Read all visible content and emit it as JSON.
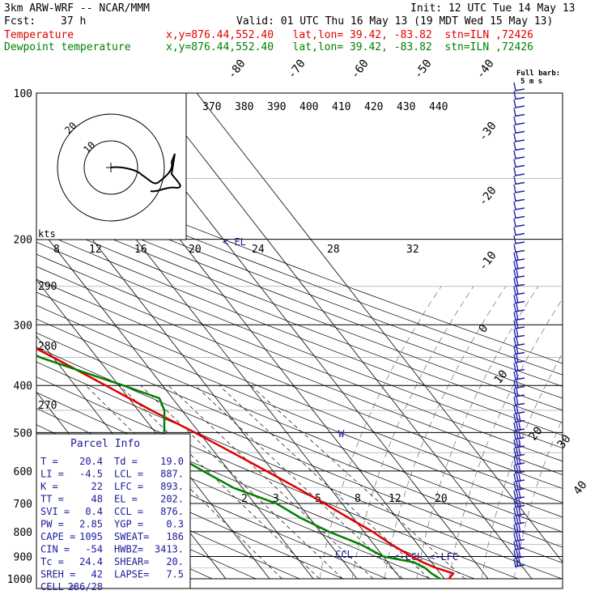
{
  "header": {
    "model": "3km ARW-WRF -- NCAR/MMM",
    "init": "Init: 12 UTC Tue 14 May 13",
    "fcst_label": "Fcst:",
    "fcst_value": "37 h",
    "valid": "Valid: 01 UTC Thu 16 May 13 (19 MDT Wed 15 May 13)",
    "temperature": {
      "name": "Temperature",
      "info": "x,y=876.44,552.40   lat,lon= 39.42, -83.82  stn=ILN ,72426"
    },
    "dewpoint": {
      "name": "Dewpoint temperature",
      "info": "x,y=876.44,552.40   lat,lon= 39.42, -83.82  stn=ILN ,72426"
    }
  },
  "colors": {
    "temperature": "#e00000",
    "dewpoint": "#008000",
    "parcel_text": "#1a1a9a",
    "barbs": "#2222aa"
  },
  "wind_barb_legend": {
    "line1": "Full barb:",
    "line2": "5 m s"
  },
  "parcel_info": {
    "title": "Parcel Info",
    "rows": [
      [
        "T  =",
        "20.4",
        "Td =",
        "19.0"
      ],
      [
        "LI =",
        "-4.5",
        "LCL =",
        "887."
      ],
      [
        "K  =",
        "22",
        "LFC =",
        "893."
      ],
      [
        "TT =",
        "48",
        "EL  =",
        "202."
      ],
      [
        "SVI =",
        "0.4",
        "CCL =",
        "876."
      ],
      [
        "PW =",
        "2.85",
        "YGP =",
        "0.3"
      ],
      [
        "CAPE =",
        "1095",
        "SWEAT=",
        "186"
      ],
      [
        "CIN =",
        "-54",
        "HWBZ=",
        "3413."
      ],
      [
        "Tc =",
        "24.4",
        "SHEAR=",
        "20."
      ],
      [
        "SREH =",
        "42",
        "LAPSE=",
        "7.5"
      ],
      [
        "CELL =",
        "286/28",
        "",
        ""
      ]
    ]
  },
  "hodograph": {
    "speed_label": "kts",
    "ring_labels": [
      "20",
      "10"
    ],
    "speed_ticks": [
      "8",
      "12",
      "16",
      "20",
      "24",
      "28",
      "32"
    ]
  },
  "level_markers": {
    "el": "<-EL",
    "lcl": "<-LCL",
    "lfc": "<-LFC",
    "ccl": "CCL"
  },
  "chart_data": {
    "type": "line",
    "title": "",
    "ylabel": "",
    "y_scale": "log (skew-T / log-p)",
    "ylim": [
      1000,
      100
    ],
    "pressure_levels": [
      100,
      200,
      300,
      400,
      500,
      600,
      700,
      800,
      900,
      1000
    ],
    "isotherm_labels": [
      "-80",
      "-70",
      "-60",
      "-50",
      "-40",
      "-30",
      "-20",
      "-10",
      "0",
      "10",
      "20",
      "30",
      "40"
    ],
    "theta_labels": [
      "370",
      "380",
      "390",
      "400",
      "410",
      "420",
      "430",
      "440"
    ],
    "theta_left_labels": [
      "290",
      "280",
      "270"
    ],
    "mixing_ratio_labels": [
      "2",
      "3",
      "5",
      "8",
      "12",
      "20"
    ],
    "series": [
      {
        "name": "Temperature",
        "points": [
          [
            1000,
            21
          ],
          [
            975,
            23
          ],
          [
            950,
            20
          ],
          [
            925,
            18
          ],
          [
            900,
            16.5
          ],
          [
            850,
            14
          ],
          [
            800,
            12
          ],
          [
            750,
            9
          ],
          [
            700,
            6
          ],
          [
            650,
            2.5
          ],
          [
            600,
            -1.5
          ],
          [
            550,
            -6
          ],
          [
            500,
            -11
          ],
          [
            450,
            -17
          ],
          [
            400,
            -23
          ],
          [
            350,
            -30
          ],
          [
            300,
            -38.5
          ],
          [
            250,
            -46
          ],
          [
            210,
            -53
          ],
          [
            200,
            -55
          ],
          [
            175,
            -58
          ],
          [
            150,
            -59
          ],
          [
            125,
            -58
          ],
          [
            110,
            -57
          ],
          [
            100,
            -56
          ]
        ]
      },
      {
        "name": "Dewpoint temperature",
        "points": [
          [
            1000,
            19
          ],
          [
            975,
            18
          ],
          [
            950,
            17.5
          ],
          [
            925,
            16
          ],
          [
            900,
            10
          ],
          [
            850,
            7
          ],
          [
            800,
            2
          ],
          [
            750,
            -2
          ],
          [
            700,
            -5
          ],
          [
            650,
            -12
          ],
          [
            600,
            -16
          ],
          [
            550,
            -20
          ],
          [
            500,
            -18
          ],
          [
            450,
            -14
          ],
          [
            425,
            -13
          ],
          [
            400,
            -19
          ],
          [
            350,
            -33
          ],
          [
            300,
            -42
          ],
          [
            275,
            -48
          ],
          [
            260,
            -48
          ],
          [
            230,
            -60
          ],
          [
            210,
            -55
          ],
          [
            200,
            -57
          ],
          [
            175,
            -70
          ],
          [
            150,
            -74
          ],
          [
            140,
            -77
          ],
          [
            130,
            -76
          ],
          [
            120,
            -77
          ],
          [
            110,
            -76
          ],
          [
            100,
            -75
          ]
        ]
      }
    ]
  }
}
